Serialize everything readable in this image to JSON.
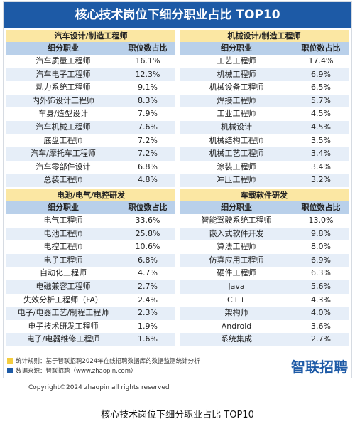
{
  "title": "核心技术岗位下细分职业占比 TOP10",
  "sections": [
    {
      "title": "汽车设计/制造工程师",
      "headers": [
        "细分职业",
        "职位数占比"
      ],
      "rows": [
        [
          "汽车质量工程师",
          "16.1%"
        ],
        [
          "汽车电子工程师",
          "12.3%"
        ],
        [
          "动力系统工程师",
          "9.1%"
        ],
        [
          "内外饰设计工程师",
          "8.3%"
        ],
        [
          "车身/造型设计",
          "7.9%"
        ],
        [
          "汽车机械工程师",
          "7.6%"
        ],
        [
          "底盘工程师",
          "7.2%"
        ],
        [
          "汽车/摩托车工程师",
          "7.2%"
        ],
        [
          "汽车零部件设计",
          "6.8%"
        ],
        [
          "总装工程师",
          "4.8%"
        ]
      ]
    },
    {
      "title": "机械设计/制造工程师",
      "headers": [
        "细分职业",
        "职位数占比"
      ],
      "rows": [
        [
          "工艺工程师",
          "17.4%"
        ],
        [
          "机械工程师",
          "6.9%"
        ],
        [
          "机械设备工程师",
          "6.5%"
        ],
        [
          "焊接工程师",
          "5.7%"
        ],
        [
          "工业工程师",
          "4.5%"
        ],
        [
          "机械设计",
          "4.5%"
        ],
        [
          "机械结构工程师",
          "3.5%"
        ],
        [
          "机械工艺工程师",
          "3.4%"
        ],
        [
          "涂装工程师",
          "3.4%"
        ],
        [
          "冲压工程师",
          "3.2%"
        ]
      ]
    },
    {
      "title": "电池/电气/电控研发",
      "headers": [
        "细分职业",
        "职位数占比"
      ],
      "rows": [
        [
          "电气工程师",
          "33.6%"
        ],
        [
          "电池工程师",
          "25.8%"
        ],
        [
          "电控工程师",
          "10.6%"
        ],
        [
          "电子工程师",
          "6.8%"
        ],
        [
          "自动化工程师",
          "4.7%"
        ],
        [
          "电磁兼容工程师",
          "2.7%"
        ],
        [
          "失效分析工程师（FA）",
          "2.4%"
        ],
        [
          "电子/电器工艺/制程工程师",
          "2.3%"
        ],
        [
          "电子技术研发工程师",
          "1.9%"
        ],
        [
          "电子/电器维修工程师",
          "1.6%"
        ]
      ]
    },
    {
      "title": "车载软件研发",
      "headers": [
        "细分职业",
        "职位数占比"
      ],
      "rows": [
        [
          "智能驾驶系统工程师",
          "13.0%"
        ],
        [
          "嵌入式软件开发",
          "9.8%"
        ],
        [
          "算法工程师",
          "8.0%"
        ],
        [
          "仿真应用工程师",
          "6.9%"
        ],
        [
          "硬件工程师",
          "6.3%"
        ],
        [
          "Java",
          "5.6%"
        ],
        [
          "C++",
          "4.3%"
        ],
        [
          "架构师",
          "4.0%"
        ],
        [
          "Android",
          "3.6%"
        ],
        [
          "系统集成",
          "2.7%"
        ]
      ]
    }
  ],
  "notes": [
    "统计规则：基于智联招聘2024年在线招聘数据库的数据监测统计分析",
    "数据来源：智联招聘（www.zhaopin.com）"
  ],
  "logo": "智联招聘",
  "copyright": "Copyright©2024 zhaopin all rights reserved",
  "caption": "核心技术岗位下细分职业占比 TOP10"
}
